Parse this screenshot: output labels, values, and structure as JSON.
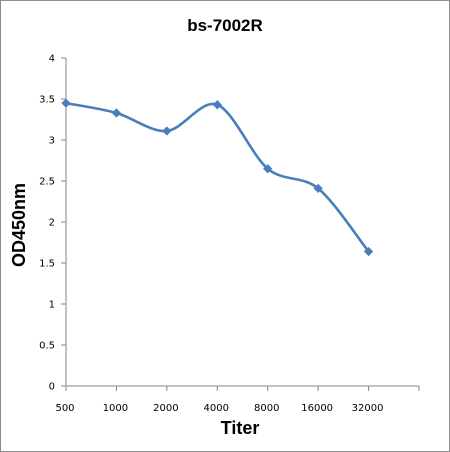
{
  "chart_data": {
    "type": "line",
    "title": "bs-7002R",
    "xlabel": "Titer",
    "ylabel": "OD450nm",
    "categories": [
      "500",
      "1000",
      "2000",
      "4000",
      "8000",
      "16000",
      "32000"
    ],
    "series": [
      {
        "values": [
          3.45,
          3.33,
          3.11,
          3.43,
          2.65,
          2.41,
          1.64
        ]
      }
    ],
    "ylim": [
      0,
      4
    ],
    "yticks": [
      "0",
      "0.5",
      "1",
      "1.5",
      "2",
      "2.5",
      "3",
      "3.5",
      "4"
    ],
    "grid": false,
    "legend": "none",
    "line_color": "#4a7ebb",
    "smooth": true
  }
}
